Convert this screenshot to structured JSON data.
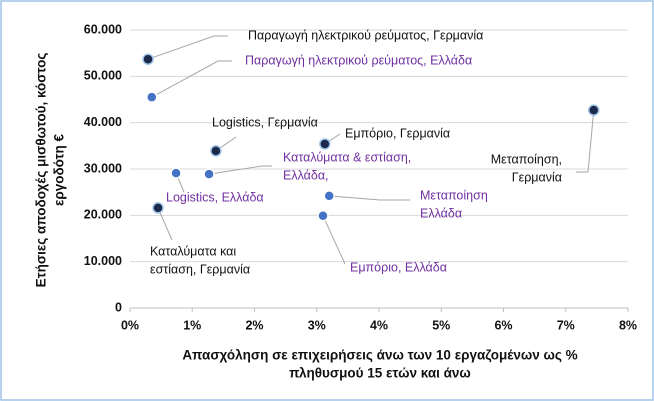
{
  "chart_data": {
    "type": "scatter",
    "y_axis_label": [
      "Ετήσιες αποδοχές μισθωτού, κόστος",
      "εργοδότη €"
    ],
    "x_axis_label": [
      "Απασχόληση  σε επιχειρήσεις άνω των 10 εργαζομένων ως %",
      "πληθυσμού 15 ετών και άνω"
    ],
    "xlim": [
      0,
      8
    ],
    "xticks": [
      {
        "value": 0,
        "label": "0%"
      },
      {
        "value": 1,
        "label": "1%"
      },
      {
        "value": 2,
        "label": "2%"
      },
      {
        "value": 3,
        "label": "3%"
      },
      {
        "value": 4,
        "label": "4%"
      },
      {
        "value": 5,
        "label": "5%"
      },
      {
        "value": 6,
        "label": "6%"
      },
      {
        "value": 7,
        "label": "7%"
      },
      {
        "value": 8,
        "label": "8%"
      }
    ],
    "ylim": [
      0,
      60000
    ],
    "yticks": [
      0,
      {
        "value": 10000,
        "label": "10.000"
      },
      {
        "value": 20000,
        "label": "20.000"
      },
      {
        "value": 30000,
        "label": "30.000"
      },
      {
        "value": 40000,
        "label": "40.000"
      },
      {
        "value": 50000,
        "label": "50.000"
      },
      {
        "value": 60000,
        "label": "60.000"
      }
    ],
    "grid": true,
    "series": [
      {
        "color": "#1b2a4a",
        "label_color": "#111111",
        "x": [
          0.29,
          1.38,
          0.45,
          3.13,
          7.45
        ],
        "values": [
          53700,
          33900,
          21600,
          35400,
          42700
        ],
        "labels": [
          [
            "Παραγωγή ηλεκτρικού ρεύματος, Γερμανία"
          ],
          [
            "Logistics, Γερμανία"
          ],
          [
            "Καταλύματα και",
            "εστίαση, Γερμανία"
          ],
          [
            "Εμπόριο, Γερμανία"
          ],
          [
            "Μεταποίηση,",
            "Γερμανία"
          ]
        ]
      },
      {
        "color": "#4472c4",
        "label_color": "#7030a0",
        "x": [
          0.35,
          0.74,
          1.27,
          3.1,
          3.2
        ],
        "values": [
          45500,
          29100,
          28900,
          19900,
          24200
        ],
        "labels": [
          [
            "Παραγωγή ηλεκτρικού ρεύματος, Ελλάδα"
          ],
          [
            "Logistics, Ελλάδα"
          ],
          [
            "Καταλύματα & εστίαση,",
            "Ελλάδα,"
          ],
          [
            "Εμπόριο, Ελλάδα"
          ],
          [
            "Μεταποίηση",
            "Ελλάδα"
          ]
        ]
      }
    ]
  }
}
